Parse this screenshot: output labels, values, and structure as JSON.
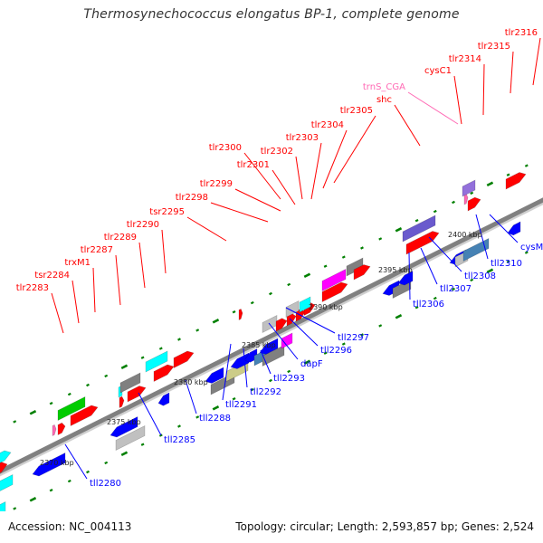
{
  "title": "Thermosynechococcus elongatus BP-1, complete genome",
  "footer": {
    "accession": "Accession: NC_004113",
    "summary": "Topology: circular; Length: 2,593,857 bp; Genes: 2,524"
  },
  "colors": {
    "forward": "#ff0000",
    "reverse": "#0000ff",
    "trna": "#ff69b4",
    "backbone": "#808080",
    "ticks": "#008000",
    "palette": [
      "#00cc00",
      "#00ffff",
      "#808080",
      "#c0c0c0",
      "#ff00ff",
      "#cccc88",
      "#4682b4",
      "#6a5acd",
      "#9370db"
    ]
  },
  "scale_labels": [
    "2370 kbp",
    "2375 kbp",
    "2380 kbp",
    "2385 kbp",
    "2390 kbp",
    "2395 kbp",
    "2400 kbp"
  ],
  "forward_labels": [
    "tlr2283",
    "tsr2284",
    "trxM1",
    "tlr2287",
    "tlr2289",
    "tlr2290",
    "tsr2295",
    "tlr2298",
    "tlr2299",
    "tlr2300",
    "tlr2301",
    "tlr2302",
    "tlr2303",
    "tlr2304",
    "tlr2305",
    "shc",
    "trnS_CGA",
    "cysC1",
    "tlr2314",
    "tlr2315",
    "tlr2316"
  ],
  "reverse_labels": [
    "tll2280",
    "tll2285",
    "tll2288",
    "tll2291",
    "tll2292",
    "tll2293",
    "dapF",
    "tll2296",
    "tll2297",
    "tll2306",
    "tll2307",
    "tll2308",
    "tll2310",
    "cysM"
  ]
}
